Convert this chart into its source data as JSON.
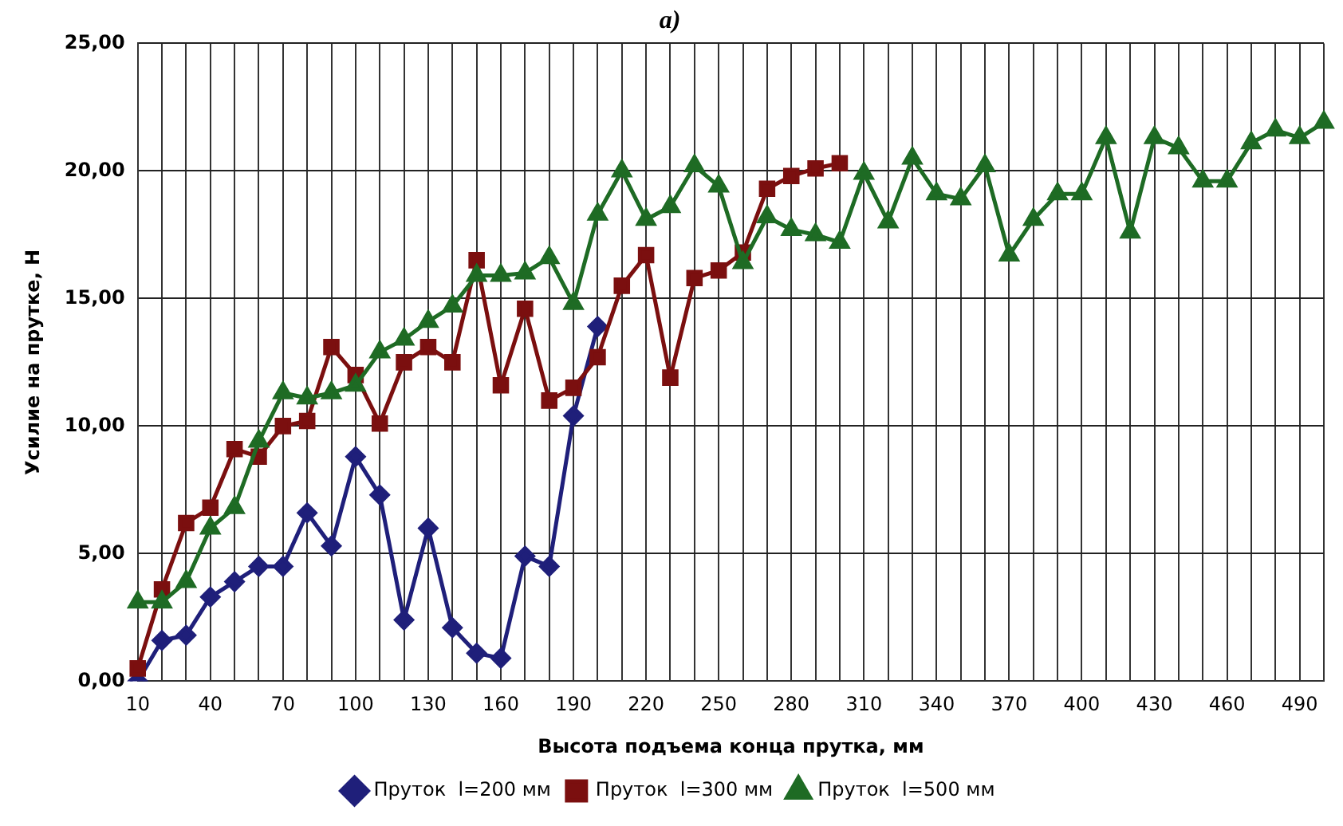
{
  "chart_data": {
    "type": "line",
    "title": "а)",
    "xlabel": "Высота подъема конца прутка, мм",
    "ylabel": "Усилие на прутке, Н",
    "categories": [
      "10",
      null,
      null,
      "40",
      null,
      null,
      "70",
      null,
      null,
      "100",
      null,
      null,
      "130",
      null,
      null,
      "160",
      null,
      null,
      "190",
      null,
      null,
      "220",
      null,
      null,
      "250",
      null,
      null,
      "280",
      null,
      null,
      "310",
      null,
      null,
      "340",
      null,
      null,
      "370",
      null,
      null,
      "400",
      null,
      null,
      "430",
      null,
      null,
      "460",
      null,
      null,
      "490",
      null
    ],
    "ylim": [
      0,
      25
    ],
    "yticks": [
      {
        "value": 0,
        "label": "0,00"
      },
      {
        "value": 5,
        "label": "5,00"
      },
      {
        "value": 10,
        "label": "10,00"
      },
      {
        "value": 15,
        "label": "15,00"
      },
      {
        "value": 20,
        "label": "20,00"
      },
      {
        "value": 25,
        "label": "25,00"
      }
    ],
    "grid": true,
    "legend": "bottom",
    "series": [
      {
        "name": "Пруток  l=200 мм",
        "color": "#1f1f7a",
        "marker": "diamond",
        "values": [
          0.0,
          1.6,
          1.8,
          3.3,
          3.9,
          4.5,
          4.5,
          6.6,
          5.3,
          8.8,
          7.3,
          2.4,
          6.0,
          2.1,
          1.1,
          0.9,
          4.9,
          4.5,
          10.4,
          13.9,
          null,
          null,
          null,
          null,
          null,
          null,
          null,
          null,
          null,
          null,
          null,
          null,
          null,
          null,
          null,
          null,
          null,
          null,
          null,
          null,
          null,
          null,
          null,
          null,
          null,
          null,
          null,
          null,
          null,
          null
        ]
      },
      {
        "name": "Пруток  l=300 мм",
        "color": "#7b0f0f",
        "marker": "square",
        "values": [
          0.5,
          3.6,
          6.2,
          6.8,
          9.1,
          8.8,
          10.0,
          10.2,
          13.1,
          12.0,
          10.1,
          12.5,
          13.1,
          12.5,
          16.5,
          11.6,
          14.6,
          11.0,
          11.5,
          12.7,
          15.5,
          16.7,
          11.9,
          15.8,
          16.1,
          16.8,
          19.3,
          19.8,
          20.1,
          20.3,
          null,
          null,
          null,
          null,
          null,
          null,
          null,
          null,
          null,
          null,
          null,
          null,
          null,
          null,
          null,
          null,
          null,
          null,
          null,
          null
        ]
      },
      {
        "name": "Пруток  l=500 мм",
        "color": "#1e6b24",
        "marker": "triangle",
        "values": [
          3.1,
          3.1,
          3.9,
          6.0,
          6.8,
          9.4,
          11.3,
          11.1,
          11.3,
          11.6,
          12.9,
          13.4,
          14.1,
          14.7,
          15.9,
          15.9,
          16.0,
          16.6,
          14.8,
          18.3,
          20.0,
          18.1,
          18.6,
          20.2,
          19.4,
          16.4,
          18.2,
          17.7,
          17.5,
          17.2,
          19.9,
          18.0,
          20.5,
          19.1,
          18.9,
          20.2,
          16.7,
          18.1,
          19.1,
          19.1,
          21.3,
          17.6,
          21.3,
          20.9,
          19.6,
          19.6,
          21.1,
          21.6,
          21.3,
          21.9
        ]
      }
    ]
  }
}
